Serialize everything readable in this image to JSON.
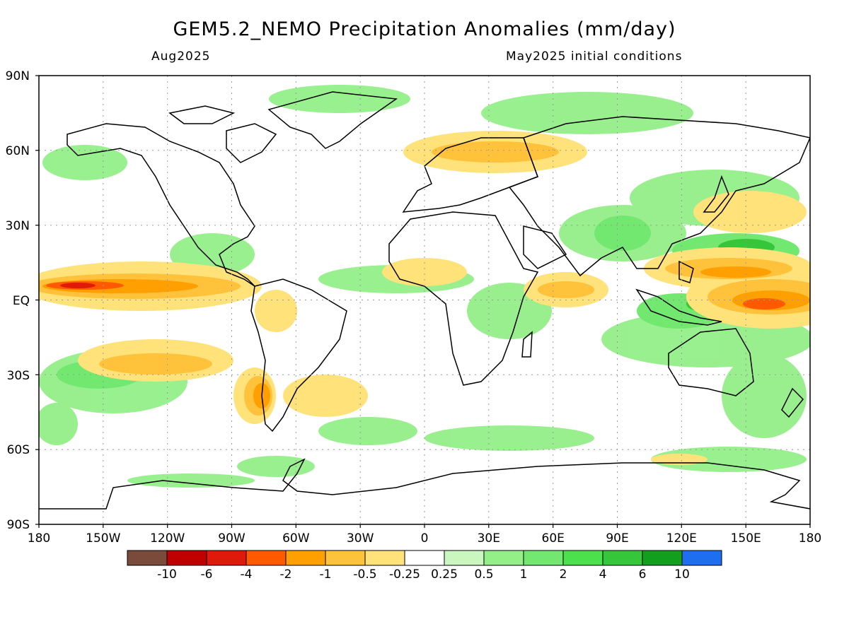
{
  "header": {
    "title": "GEM5.2_NEMO Precipitation Anomalies (mm/day)",
    "valid_month": "Aug2025",
    "init_note": "May2025 initial conditions"
  },
  "axes": {
    "lat_labels": [
      "90N",
      "60N",
      "30N",
      "EQ",
      "30S",
      "60S",
      "90S"
    ],
    "lon_labels": [
      "180",
      "150W",
      "120W",
      "90W",
      "60W",
      "30W",
      "0",
      "30E",
      "60E",
      "90E",
      "120E",
      "150E",
      "180"
    ]
  },
  "colorbar": {
    "colors": [
      "#7a4a3a",
      "#c00000",
      "#e01a0a",
      "#ff5a00",
      "#ff9f00",
      "#ffc23a",
      "#ffe27a",
      "#ffffff",
      "#c9f7bf",
      "#94ef88",
      "#72e870",
      "#4be04c",
      "#35c63a",
      "#139f1d",
      "#1e6ff0"
    ],
    "labels": [
      "-10",
      "-6",
      "-4",
      "-2",
      "-1",
      "-0.5",
      "-0.25",
      "0.25",
      "0.5",
      "1",
      "2",
      "4",
      "6",
      "10"
    ]
  },
  "colors": {
    "frame": "#000000",
    "grid": "#9a9a9a",
    "coast": "#000000"
  }
}
